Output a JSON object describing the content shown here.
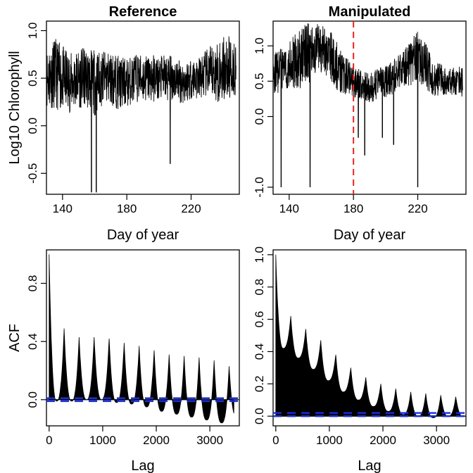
{
  "chart_data": [
    {
      "panel": "top-left",
      "type": "line",
      "title": "Reference",
      "xlabel": "Day of year",
      "ylabel": "Log10 Chlorophyll",
      "xlim": [
        130,
        250
      ],
      "ylim": [
        -0.72,
        1.1
      ],
      "xticks": [
        "140",
        "180",
        "220"
      ],
      "yticks": [
        "-0.5",
        "0.0",
        "0.5",
        "1.0"
      ],
      "series": [
        {
          "style": "black-line",
          "x": [
            130,
            135,
            140,
            145,
            150,
            155,
            160,
            165,
            170,
            175,
            180,
            185,
            190,
            195,
            200,
            205,
            210,
            215,
            220,
            225,
            230,
            235,
            240,
            245,
            248
          ],
          "y": [
            0.5,
            0.55,
            0.5,
            0.45,
            0.5,
            0.5,
            0.45,
            0.5,
            0.5,
            0.45,
            0.45,
            0.5,
            0.5,
            0.5,
            0.5,
            0.5,
            0.5,
            0.45,
            0.5,
            0.5,
            0.55,
            0.55,
            0.6,
            0.6,
            0.6
          ],
          "band": [
            0.55,
            0.65,
            0.6,
            0.55,
            0.55,
            0.55,
            0.6,
            0.5,
            0.5,
            0.5,
            0.45,
            0.45,
            0.45,
            0.45,
            0.4,
            0.45,
            0.4,
            0.4,
            0.4,
            0.4,
            0.45,
            0.55,
            0.6,
            0.6,
            0.5
          ]
        }
      ],
      "spikes": [
        {
          "x": 158,
          "y": -0.7
        },
        {
          "x": 161,
          "y": -0.7
        },
        {
          "x": 207,
          "y": -0.4
        }
      ]
    },
    {
      "panel": "top-right",
      "type": "line",
      "title": "Manipulated",
      "xlabel": "Day of year",
      "ylabel": "",
      "xlim": [
        130,
        250
      ],
      "ylim": [
        -1.1,
        1.35
      ],
      "xticks": [
        "140",
        "180",
        "220"
      ],
      "yticks": [
        "-1.0",
        "0.0",
        "0.5",
        "1.0"
      ],
      "series": [
        {
          "style": "black-line",
          "x": [
            130,
            135,
            140,
            145,
            150,
            155,
            160,
            165,
            170,
            175,
            180,
            185,
            190,
            195,
            200,
            205,
            210,
            215,
            220,
            225,
            230,
            235,
            240,
            245,
            248
          ],
          "y": [
            0.6,
            0.65,
            0.75,
            0.8,
            0.85,
            0.95,
            0.95,
            0.9,
            0.7,
            0.6,
            0.5,
            0.45,
            0.4,
            0.45,
            0.5,
            0.55,
            0.65,
            0.75,
            0.85,
            0.7,
            0.55,
            0.5,
            0.5,
            0.5,
            0.5
          ],
          "band": [
            0.5,
            0.55,
            0.6,
            0.7,
            0.8,
            0.7,
            0.6,
            0.6,
            0.6,
            0.5,
            0.4,
            0.35,
            0.35,
            0.4,
            0.4,
            0.45,
            0.45,
            0.55,
            0.65,
            0.6,
            0.45,
            0.4,
            0.35,
            0.35,
            0.4
          ]
        }
      ],
      "spikes": [
        {
          "x": 135,
          "y": -1.0
        },
        {
          "x": 153,
          "y": -1.0
        },
        {
          "x": 183,
          "y": -0.3
        },
        {
          "x": 187,
          "y": -0.55
        },
        {
          "x": 198,
          "y": -0.3
        },
        {
          "x": 205,
          "y": -0.4
        },
        {
          "x": 220,
          "y": -1.0
        }
      ],
      "vline": {
        "x": 180,
        "color": "#e8241f",
        "style": "dashed"
      }
    },
    {
      "panel": "bottom-left",
      "type": "area",
      "title": "",
      "xlabel": "Lag",
      "ylabel": "ACF",
      "xlim": [
        -50,
        3550
      ],
      "ylim": [
        -0.18,
        1.03
      ],
      "xticks": [
        "0",
        "1000",
        "2000",
        "3000"
      ],
      "yticks": [
        "0.0",
        "0.4",
        "0.8"
      ],
      "acf": {
        "peak_lags": [
          0,
          280,
          560,
          840,
          1120,
          1400,
          1680,
          1960,
          2240,
          2520,
          2800,
          3080,
          3360
        ],
        "peak_values": [
          1.0,
          0.49,
          0.43,
          0.43,
          0.42,
          0.39,
          0.37,
          0.34,
          0.31,
          0.3,
          0.29,
          0.27,
          0.23
        ],
        "trough_values": [
          -0.01,
          -0.01,
          0.0,
          0.0,
          -0.02,
          -0.03,
          -0.05,
          -0.08,
          -0.1,
          -0.12,
          -0.14,
          -0.16,
          -0.12
        ],
        "max_lag": 3450
      },
      "conf_band": [
        0.01,
        -0.01
      ],
      "conf_color": "#1a2fd6"
    },
    {
      "panel": "bottom-right",
      "type": "area",
      "title": "",
      "xlabel": "Lag",
      "ylabel": "",
      "xlim": [
        -50,
        3550
      ],
      "ylim": [
        -0.06,
        1.03
      ],
      "xticks": [
        "0",
        "1000",
        "2000",
        "3000"
      ],
      "yticks": [
        "0.0",
        "0.2",
        "0.4",
        "0.6",
        "0.8",
        "1.0"
      ],
      "acf": {
        "peak_lags": [
          0,
          280,
          560,
          840,
          1120,
          1400,
          1680,
          1960,
          2240,
          2520,
          2800,
          3080,
          3360
        ],
        "peak_values": [
          1.0,
          0.62,
          0.54,
          0.47,
          0.38,
          0.3,
          0.24,
          0.2,
          0.17,
          0.15,
          0.14,
          0.13,
          0.12
        ],
        "trough_values": [
          0.42,
          0.36,
          0.29,
          0.22,
          0.15,
          0.1,
          0.06,
          0.03,
          0.01,
          0.0,
          -0.01,
          0.0,
          0.0
        ],
        "max_lag": 3450
      },
      "conf_band": [
        0.02,
        0.0
      ],
      "conf_color": "#1a2fd6"
    }
  ]
}
